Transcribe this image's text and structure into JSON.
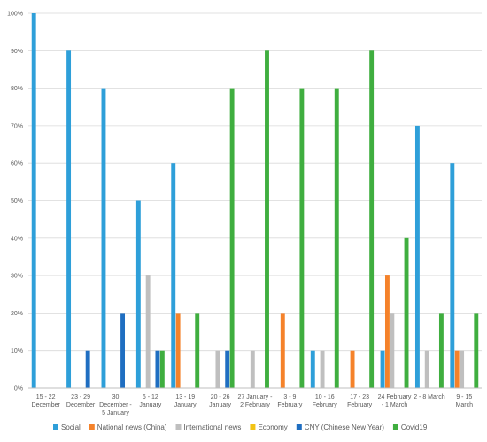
{
  "chart_data": {
    "type": "bar",
    "categories": [
      [
        "15 - 22",
        "December"
      ],
      [
        "23 - 29",
        "December"
      ],
      [
        "30",
        "December -",
        "5 January"
      ],
      [
        "6 - 12",
        "January"
      ],
      [
        "13 - 19",
        "January"
      ],
      [
        "20 - 26",
        "January"
      ],
      [
        "27 January -",
        "2 February"
      ],
      [
        "3 - 9",
        "February"
      ],
      [
        "10 - 16",
        "February"
      ],
      [
        "17 - 23",
        "February"
      ],
      [
        "24 February",
        "- 1 March"
      ],
      [
        "2 - 8 March"
      ],
      [
        "9 - 15",
        "March"
      ]
    ],
    "series": [
      {
        "name": "Social",
        "color": "#2E9FD9",
        "values": [
          100,
          90,
          80,
          50,
          60,
          0,
          0,
          0,
          10,
          0,
          10,
          70,
          60
        ]
      },
      {
        "name": "National news (China)",
        "color": "#F5822A",
        "values": [
          0,
          0,
          0,
          0,
          20,
          0,
          0,
          20,
          0,
          10,
          30,
          0,
          10
        ]
      },
      {
        "name": "International news",
        "color": "#BFBFBF",
        "values": [
          0,
          0,
          0,
          30,
          0,
          10,
          10,
          0,
          10,
          0,
          20,
          10,
          10
        ]
      },
      {
        "name": "Economy",
        "color": "#F2C314",
        "values": [
          0,
          0,
          0,
          0,
          0,
          0,
          0,
          0,
          0,
          0,
          0,
          0,
          0
        ]
      },
      {
        "name": "CNY (Chinese New Year)",
        "color": "#1F6EC1",
        "values": [
          0,
          10,
          20,
          10,
          0,
          10,
          0,
          0,
          0,
          0,
          0,
          0,
          0
        ]
      },
      {
        "name": "Covid19",
        "color": "#3FAE3F",
        "values": [
          0,
          0,
          0,
          10,
          20,
          80,
          90,
          80,
          80,
          90,
          40,
          20,
          20
        ]
      }
    ],
    "yticks": [
      "0%",
      "10%",
      "20%",
      "30%",
      "40%",
      "50%",
      "60%",
      "70%",
      "80%",
      "90%",
      "100%"
    ],
    "ylim": [
      0,
      100
    ],
    "grid": true,
    "legend_position": "bottom",
    "title": "",
    "xlabel": "",
    "ylabel": ""
  }
}
